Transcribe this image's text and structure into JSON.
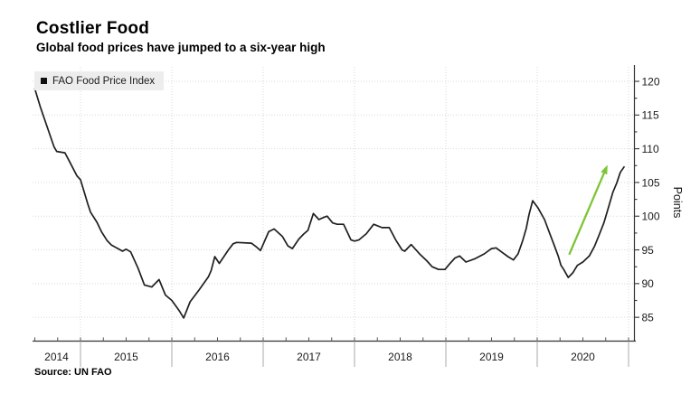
{
  "header": {
    "title": "Costlier Food",
    "subtitle": "Global food prices have jumped to a six-year high"
  },
  "legend": {
    "items": [
      {
        "label": "FAO Food Price Index",
        "swatch_color": "#111111"
      }
    ]
  },
  "footer": {
    "source": "Source: UN FAO"
  },
  "colors": {
    "line": "#1f1f1f",
    "arrow_green": "#7dc535",
    "grid": "#d9d9d9",
    "axis": "#333333",
    "year_separator": "#a8a8a8",
    "tick_label": "#1a1a1a",
    "legend_bg": "#ededed"
  },
  "chart_data": {
    "type": "line",
    "title": "Costlier Food",
    "subtitle": "Global food prices have jumped to a six-year high",
    "ylabel": "Points",
    "y_ticks": [
      85,
      90,
      95,
      100,
      105,
      110,
      115,
      120
    ],
    "y_minor_step": 2.5,
    "ylim": [
      81.5,
      121.8
    ],
    "x_tick_labels": [
      "2014",
      "2015",
      "2016",
      "2017",
      "2018",
      "2019",
      "2020"
    ],
    "x_range_years": [
      2014.47,
      2021.07
    ],
    "grid": "dotted",
    "legend_position": "top-left",
    "axis_side": "right",
    "series": [
      {
        "name": "FAO Food Price Index",
        "color": "#1f1f1f",
        "points": [
          [
            2014.5,
            118.9
          ],
          [
            2014.56,
            116.2
          ],
          [
            2014.71,
            110.3
          ],
          [
            2014.74,
            109.6
          ],
          [
            2014.83,
            109.4
          ],
          [
            2014.88,
            108.1
          ],
          [
            2014.96,
            106.0
          ],
          [
            2015.0,
            105.4
          ],
          [
            2015.08,
            101.8
          ],
          [
            2015.11,
            100.6
          ],
          [
            2015.18,
            99.1
          ],
          [
            2015.23,
            97.7
          ],
          [
            2015.29,
            96.4
          ],
          [
            2015.34,
            95.7
          ],
          [
            2015.41,
            95.2
          ],
          [
            2015.46,
            94.8
          ],
          [
            2015.5,
            95.1
          ],
          [
            2015.55,
            94.7
          ],
          [
            2015.63,
            92.3
          ],
          [
            2015.7,
            89.8
          ],
          [
            2015.78,
            89.5
          ],
          [
            2015.86,
            90.6
          ],
          [
            2015.93,
            88.3
          ],
          [
            2016.0,
            87.5
          ],
          [
            2016.08,
            86.0
          ],
          [
            2016.13,
            84.9
          ],
          [
            2016.2,
            87.3
          ],
          [
            2016.3,
            89.1
          ],
          [
            2016.4,
            91.0
          ],
          [
            2016.43,
            91.9
          ],
          [
            2016.47,
            94.0
          ],
          [
            2016.52,
            93.0
          ],
          [
            2016.62,
            95.0
          ],
          [
            2016.67,
            95.9
          ],
          [
            2016.71,
            96.1
          ],
          [
            2016.87,
            96.0
          ],
          [
            2016.92,
            95.5
          ],
          [
            2016.97,
            94.9
          ],
          [
            2017.06,
            97.7
          ],
          [
            2017.12,
            98.1
          ],
          [
            2017.21,
            97.0
          ],
          [
            2017.27,
            95.6
          ],
          [
            2017.32,
            95.2
          ],
          [
            2017.39,
            96.6
          ],
          [
            2017.44,
            97.3
          ],
          [
            2017.49,
            97.9
          ],
          [
            2017.55,
            100.4
          ],
          [
            2017.61,
            99.5
          ],
          [
            2017.66,
            99.8
          ],
          [
            2017.7,
            100.0
          ],
          [
            2017.76,
            99.0
          ],
          [
            2017.81,
            98.8
          ],
          [
            2017.88,
            98.8
          ],
          [
            2017.96,
            96.5
          ],
          [
            2018.0,
            96.3
          ],
          [
            2018.05,
            96.5
          ],
          [
            2018.13,
            97.4
          ],
          [
            2018.21,
            98.8
          ],
          [
            2018.3,
            98.3
          ],
          [
            2018.38,
            98.3
          ],
          [
            2018.45,
            96.5
          ],
          [
            2018.52,
            95.0
          ],
          [
            2018.55,
            94.8
          ],
          [
            2018.62,
            95.8
          ],
          [
            2018.72,
            94.3
          ],
          [
            2018.79,
            93.4
          ],
          [
            2018.85,
            92.5
          ],
          [
            2018.92,
            92.1
          ],
          [
            2018.99,
            92.1
          ],
          [
            2019.04,
            92.9
          ],
          [
            2019.1,
            93.8
          ],
          [
            2019.15,
            94.1
          ],
          [
            2019.22,
            93.2
          ],
          [
            2019.32,
            93.7
          ],
          [
            2019.42,
            94.4
          ],
          [
            2019.5,
            95.2
          ],
          [
            2019.55,
            95.3
          ],
          [
            2019.63,
            94.5
          ],
          [
            2019.68,
            94.0
          ],
          [
            2019.74,
            93.5
          ],
          [
            2019.79,
            94.4
          ],
          [
            2019.84,
            96.3
          ],
          [
            2019.88,
            98.2
          ],
          [
            2019.91,
            100.2
          ],
          [
            2019.95,
            102.3
          ],
          [
            2020.01,
            101.2
          ],
          [
            2020.08,
            99.5
          ],
          [
            2020.13,
            97.7
          ],
          [
            2020.18,
            95.9
          ],
          [
            2020.23,
            94.1
          ],
          [
            2020.26,
            92.7
          ],
          [
            2020.29,
            92.1
          ],
          [
            2020.34,
            90.9
          ],
          [
            2020.39,
            91.6
          ],
          [
            2020.44,
            92.7
          ],
          [
            2020.5,
            93.2
          ],
          [
            2020.57,
            94.1
          ],
          [
            2020.63,
            95.6
          ],
          [
            2020.68,
            97.3
          ],
          [
            2020.73,
            99.0
          ],
          [
            2020.78,
            101.3
          ],
          [
            2020.83,
            103.6
          ],
          [
            2020.87,
            104.9
          ],
          [
            2020.91,
            106.5
          ],
          [
            2020.95,
            107.3
          ]
        ]
      }
    ],
    "annotation": {
      "type": "arrow",
      "from": [
        2020.35,
        94.3
      ],
      "to": [
        2020.77,
        107.6
      ],
      "color": "#7dc535"
    }
  }
}
